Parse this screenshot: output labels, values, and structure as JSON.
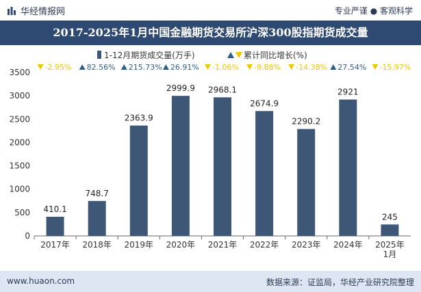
{
  "header": {
    "brand": "华经情报网",
    "tagline": "专业严谨 ● 客观科学"
  },
  "footer": {
    "website": "www.huaon.com",
    "source": "数据来源：证监局，华经产业研究院整理"
  },
  "colors": {
    "bar": "#3e5777",
    "up": "#2f5d8a",
    "down": "#f2c500",
    "title_bg": "#2f4a72",
    "footer_bg": "#dde6f2"
  },
  "chart_data": {
    "type": "bar",
    "title": "2017-2025年1月中国金融期货交易所沪深300股指期货成交量",
    "categories": [
      "2017年",
      "2018年",
      "2019年",
      "2020年",
      "2021年",
      "2022年",
      "2023年",
      "2024年",
      "2025年\n1月"
    ],
    "series": [
      {
        "name": "1-12月期货成交量(万手)",
        "values": [
          410.1,
          748.7,
          2363.9,
          2999.9,
          2968.1,
          2674.9,
          2290.2,
          2921,
          245
        ],
        "labels": [
          "410.1",
          "748.7",
          "2363.9",
          "2999.9",
          "2968.1",
          "2674.9",
          "2290.2",
          "2921",
          "245"
        ]
      },
      {
        "name": "累计同比增长(%)",
        "values": [
          -2.95,
          82.56,
          215.73,
          26.91,
          -1.06,
          -9.88,
          -14.38,
          27.54,
          -15.97
        ],
        "labels": [
          "-2.95%",
          "82.56%",
          "215.73%",
          "26.91%",
          "-1.06%",
          "-9.88%",
          "-14.38%",
          "27.54%",
          "-15.97%"
        ]
      }
    ],
    "ylim": [
      0,
      3500
    ],
    "yticks": [
      "0",
      "500",
      "1000",
      "1500",
      "2000",
      "2500",
      "3000",
      "3500"
    ],
    "legend_position": "top",
    "grid": false
  }
}
